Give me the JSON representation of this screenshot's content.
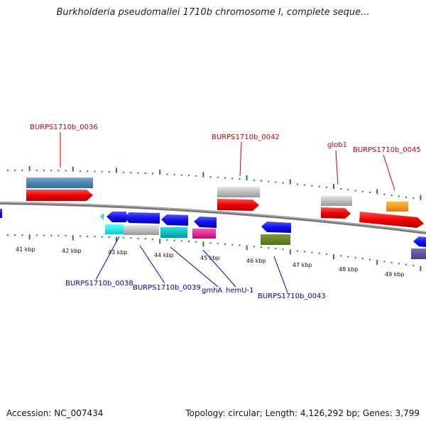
{
  "title": "Burkholderia pseudomallei 1710b chromosome I, complete seque...",
  "footer": {
    "accession": "Accession: NC_007434",
    "topology": "Topology: circular; Length: 4,126,292 bp; Genes: 3,799"
  },
  "scale_labels": [
    "41 kbp",
    "42 kbp",
    "43 kbp",
    "44 kbp",
    "45 kbp",
    "46 kbp",
    "47 kbp",
    "48 kbp",
    "49 kbp"
  ],
  "gene_labels_top": [
    "BURPS1710b_0036",
    "BURPS1710b_0042",
    "glob1",
    "BURPS1710b_0045"
  ],
  "gene_labels_bottom": [
    "BURPS1710b_0038",
    "BURPS1710b_0039",
    "gmhA",
    "hemU-1",
    "BURPS1710b_0043"
  ],
  "colors": {
    "top_label": "#cc0000",
    "bottom_label": "#0000cc",
    "tick": "#1a8a1a",
    "backbone": "#777777"
  }
}
